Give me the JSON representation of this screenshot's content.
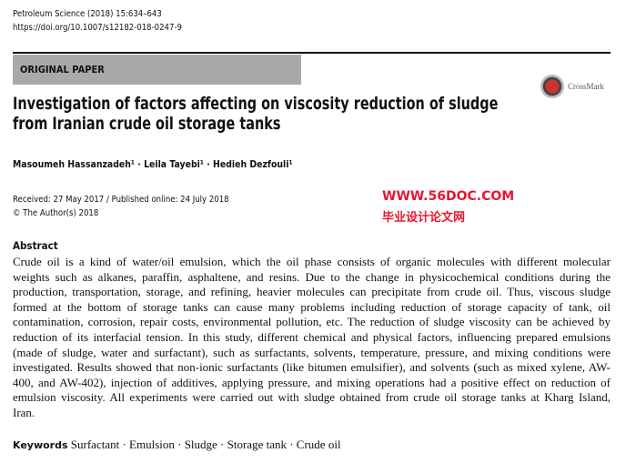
{
  "header": {
    "journal": "Petroleum Science (2018) 15:634–643",
    "doi": "https://doi.org/10.1007/s12182-018-0247-9",
    "article_type": "ORIGINAL PAPER",
    "crossmark": "CrossMark"
  },
  "title": {
    "line1": "Investigation of factors affecting on viscosity reduction of sludge",
    "line2": "from Iranian crude oil storage tanks"
  },
  "authors": "Masoumeh Hassanzadeh¹ · Leila Tayebi¹ · Hedieh Dezfouli¹",
  "dates": {
    "received": "Received: 27 May 2017 / Published online: 24 July 2018",
    "copyright": "© The Author(s) 2018"
  },
  "abstract": {
    "heading": "Abstract",
    "lines": [
      "Crude oil is a kind of water/oil emulsion, which the oil phase consists of organic molecules with different molecular",
      "weights such as alkanes, paraffin, asphaltene, and resins. Due to the change in physicochemical conditions during the",
      "production, transportation, storage, and refining, heavier molecules can precipitate from crude oil. Thus, viscous sludge",
      "formed at the bottom of storage tanks can cause many problems including reduction of storage capacity of tank, oil",
      "contamination, corrosion, repair costs, environmental pollution, etc. The reduction of sludge viscosity can be achieved by",
      "reduction of its interfacial tension. In this study, different chemical and physical factors, influencing prepared emulsions",
      "(made of sludge, water and surfactant), such as surfactants, solvents, temperature, pressure, and mixing conditions were",
      "investigated. Results showed that non-ionic surfactants (like bitumen emulsifier), and solvents (such as mixed xylene, AW-",
      "400, and AW-402), injection of additives, applying pressure, and mixing operations had a positive effect on reduction of",
      "emulsion viscosity. All experiments were carried out with sludge obtained from crude oil storage tanks at Kharg Island,",
      "Iran."
    ]
  },
  "keywords": {
    "label": "Keywords",
    "items": "Surfactant · Emulsion · Sludge · Storage tank · Crude oil"
  },
  "watermark": {
    "cn": "毕业设计论文网",
    "url": "WWW.56DOC.COM",
    "color": "#e0001b"
  }
}
